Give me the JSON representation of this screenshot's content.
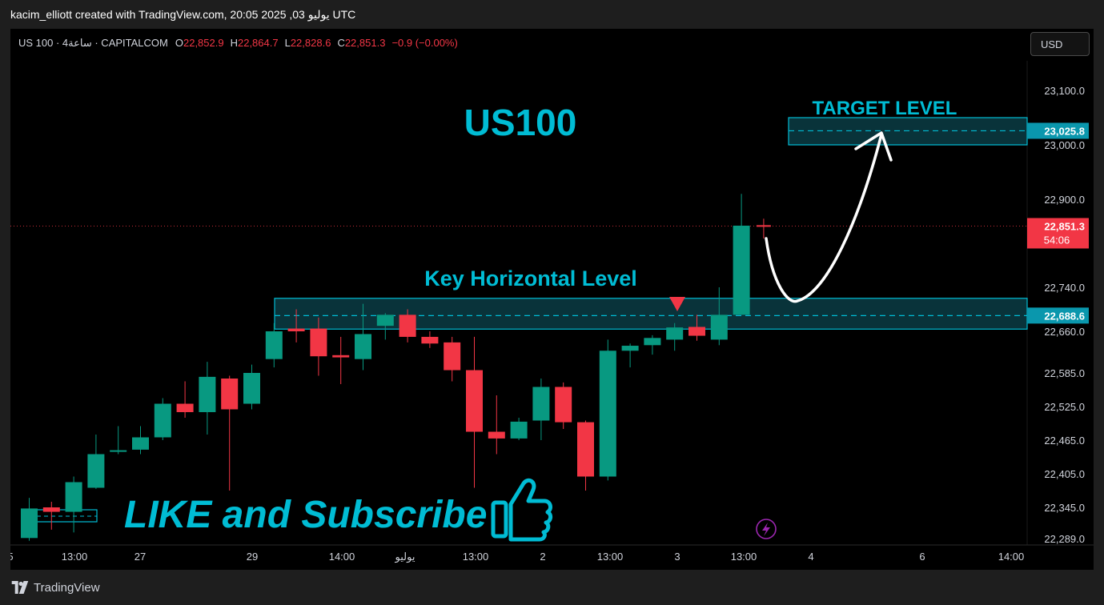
{
  "header": {
    "attribution": "kacim_elliott created with TradingView.com, 20:05 2025 ,03 يوليو UTC"
  },
  "symbol_bar": {
    "symbol": "US 100 · 4ساعة · CAPITALCOM",
    "o_label": "O",
    "o_value": "22,852.9",
    "h_label": "H",
    "h_value": "22,864.7",
    "l_label": "L",
    "l_value": "22,828.6",
    "c_label": "C",
    "c_value": "22,851.3",
    "change": "−0.9 (−0.00%)"
  },
  "currency_button": {
    "label": "USD"
  },
  "annotations": {
    "title": "US100",
    "target_label": "TARGET  LEVEL",
    "key_label": "Key Horizontal Level",
    "cta": "LIKE and Subscribe"
  },
  "price_axis": {
    "labels": [
      "23,100.0",
      "23,000.0",
      "22,900.0",
      "22,740.0",
      "22,660.0",
      "22,585.0",
      "22,525.0",
      "22,465.0",
      "22,405.0",
      "22,345.0",
      "22,289.0"
    ],
    "target_badge": "23,025.8",
    "current_price_badge": "22,851.3",
    "countdown": "54:06",
    "key_badge": "22,688.6"
  },
  "time_axis": {
    "labels": [
      "5",
      "13:00",
      "27",
      "29",
      "14:00",
      "يوليو",
      "13:00",
      "2",
      "13:00",
      "3",
      "13:00",
      "4",
      "6",
      "14:00"
    ]
  },
  "footer": {
    "brand": "TradingView"
  },
  "colors": {
    "up": "#089981",
    "down": "#f23645",
    "accent": "#00bcd4",
    "zone_fill": "#0b3c44",
    "background": "#000000"
  },
  "chart_data": {
    "type": "candlestick",
    "title": "US100",
    "symbol": "US 100",
    "ylim": [
      22285,
      23145
    ],
    "price_scale": "linear",
    "grid": false,
    "levels": [
      {
        "name": "Key Horizontal Level",
        "value": 22688.6,
        "zone": [
          22664,
          22720
        ]
      },
      {
        "name": "TARGET  LEVEL",
        "value": 23025.8,
        "zone": [
          23000,
          23050
        ]
      }
    ],
    "current_price": 22851.3,
    "candles": [
      {
        "o": 22290,
        "h": 22362,
        "l": 22285,
        "c": 22343
      },
      {
        "o": 22345,
        "h": 22355,
        "l": 22305,
        "c": 22337
      },
      {
        "o": 22337,
        "h": 22400,
        "l": 22300,
        "c": 22390
      },
      {
        "o": 22380,
        "h": 22475,
        "l": 22378,
        "c": 22440
      },
      {
        "o": 22445,
        "h": 22490,
        "l": 22440,
        "c": 22447
      },
      {
        "o": 22448,
        "h": 22490,
        "l": 22440,
        "c": 22470
      },
      {
        "o": 22470,
        "h": 22540,
        "l": 22465,
        "c": 22530
      },
      {
        "o": 22530,
        "h": 22570,
        "l": 22505,
        "c": 22515
      },
      {
        "o": 22515,
        "h": 22605,
        "l": 22475,
        "c": 22578
      },
      {
        "o": 22575,
        "h": 22580,
        "l": 22375,
        "c": 22520
      },
      {
        "o": 22530,
        "h": 22600,
        "l": 22520,
        "c": 22585
      },
      {
        "o": 22610,
        "h": 22675,
        "l": 22595,
        "c": 22660
      },
      {
        "o": 22665,
        "h": 22700,
        "l": 22640,
        "c": 22660
      },
      {
        "o": 22665,
        "h": 22685,
        "l": 22580,
        "c": 22615
      },
      {
        "o": 22617,
        "h": 22650,
        "l": 22565,
        "c": 22613
      },
      {
        "o": 22610,
        "h": 22710,
        "l": 22590,
        "c": 22655
      },
      {
        "o": 22670,
        "h": 22693,
        "l": 22645,
        "c": 22690
      },
      {
        "o": 22690,
        "h": 22700,
        "l": 22640,
        "c": 22650
      },
      {
        "o": 22650,
        "h": 22660,
        "l": 22630,
        "c": 22638
      },
      {
        "o": 22640,
        "h": 22650,
        "l": 22570,
        "c": 22590
      },
      {
        "o": 22590,
        "h": 22650,
        "l": 22380,
        "c": 22480
      },
      {
        "o": 22480,
        "h": 22545,
        "l": 22440,
        "c": 22468
      },
      {
        "o": 22468,
        "h": 22505,
        "l": 22465,
        "c": 22498
      },
      {
        "o": 22500,
        "h": 22575,
        "l": 22465,
        "c": 22560
      },
      {
        "o": 22560,
        "h": 22568,
        "l": 22485,
        "c": 22497
      },
      {
        "o": 22497,
        "h": 22500,
        "l": 22375,
        "c": 22400
      },
      {
        "o": 22400,
        "h": 22645,
        "l": 22393,
        "c": 22625
      },
      {
        "o": 22625,
        "h": 22638,
        "l": 22595,
        "c": 22634
      },
      {
        "o": 22635,
        "h": 22653,
        "l": 22618,
        "c": 22648
      },
      {
        "o": 22645,
        "h": 22675,
        "l": 22625,
        "c": 22667
      },
      {
        "o": 22668,
        "h": 22690,
        "l": 22643,
        "c": 22652
      },
      {
        "o": 22645,
        "h": 22740,
        "l": 22635,
        "c": 22690
      },
      {
        "o": 22690,
        "h": 22910,
        "l": 22690,
        "c": 22852
      },
      {
        "o": 22852.9,
        "h": 22864.7,
        "l": 22828.6,
        "c": 22851.3
      }
    ]
  }
}
